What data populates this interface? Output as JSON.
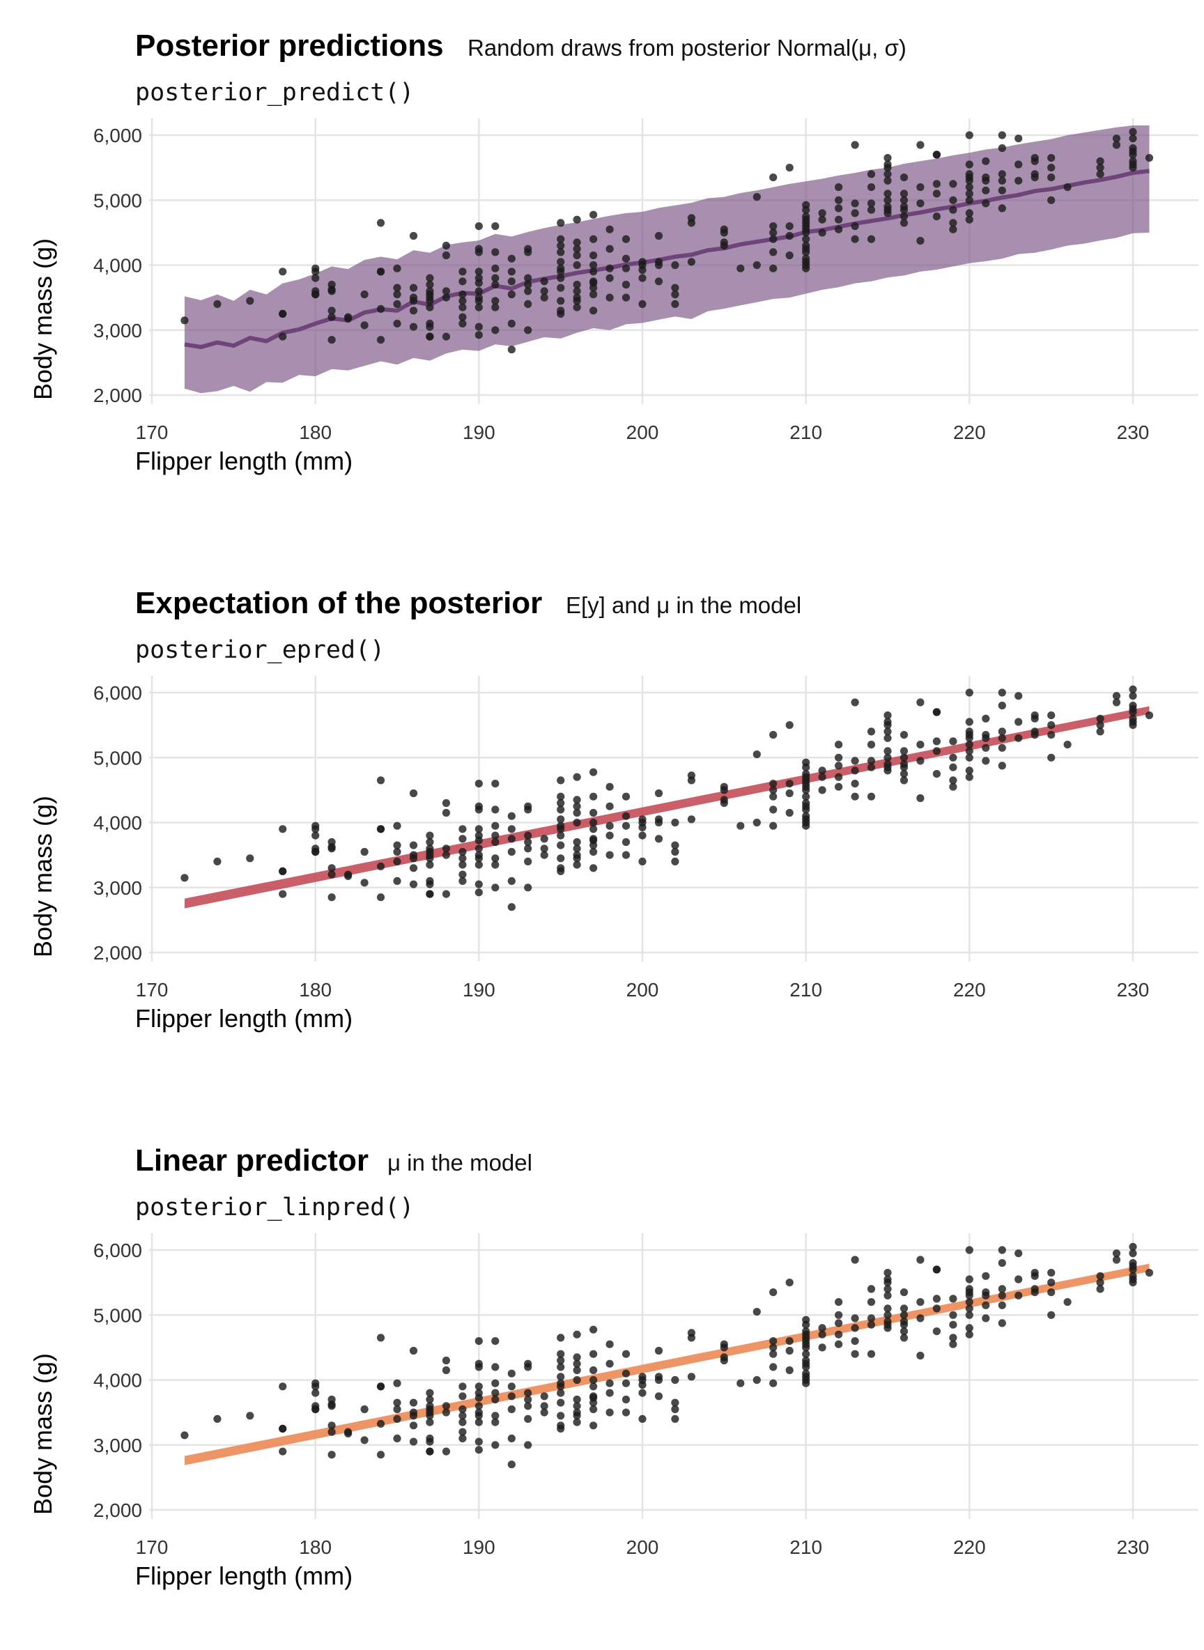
{
  "chart_data": [
    {
      "type": "scatter",
      "title": "Posterior predictions",
      "subtitle": "Random draws from posterior Normal(μ, σ)",
      "caption": "posterior_predict()",
      "xlabel": "Flipper length (mm)",
      "ylabel": "Body mass (g)",
      "xlim": [
        169,
        234
      ],
      "ylim": [
        1850,
        6150
      ],
      "xticks": [
        170,
        180,
        190,
        200,
        210,
        220,
        230
      ],
      "yticks": [
        "2,000",
        "3,000",
        "4,000",
        "5,000",
        "6,000"
      ],
      "ytick_values": [
        2000,
        3000,
        4000,
        5000,
        6000
      ],
      "grid": true,
      "band_style": "ribbon",
      "band_color": "#7a5184",
      "band_opacity": 0.65,
      "line_color": "#6e4479",
      "band": {
        "x": [
          172,
          173,
          174,
          175,
          176,
          177,
          178,
          179,
          180,
          181,
          182,
          183,
          184,
          185,
          186,
          187,
          188,
          189,
          190,
          191,
          192,
          193,
          194,
          195,
          196,
          197,
          198,
          199,
          200,
          201,
          202,
          203,
          204,
          205,
          206,
          207,
          208,
          209,
          210,
          211,
          212,
          213,
          214,
          215,
          216,
          217,
          218,
          219,
          220,
          221,
          222,
          223,
          224,
          225,
          226,
          227,
          228,
          229,
          230,
          231
        ],
        "mean": [
          2780,
          2740,
          2810,
          2760,
          2880,
          2830,
          2960,
          3010,
          3100,
          3180,
          3150,
          3270,
          3320,
          3300,
          3440,
          3390,
          3520,
          3570,
          3560,
          3680,
          3640,
          3740,
          3790,
          3830,
          3880,
          3920,
          3960,
          4010,
          4040,
          4080,
          4130,
          4160,
          4230,
          4260,
          4320,
          4360,
          4400,
          4440,
          4510,
          4540,
          4590,
          4640,
          4680,
          4720,
          4770,
          4810,
          4860,
          4900,
          4950,
          4990,
          5040,
          5080,
          5140,
          5170,
          5220,
          5270,
          5310,
          5360,
          5420,
          5450
        ],
        "lower": [
          2100,
          2030,
          2060,
          2140,
          2050,
          2200,
          2190,
          2310,
          2290,
          2400,
          2380,
          2450,
          2520,
          2470,
          2570,
          2530,
          2640,
          2700,
          2680,
          2780,
          2750,
          2820,
          2890,
          2870,
          2960,
          3030,
          3000,
          3090,
          3110,
          3160,
          3210,
          3170,
          3290,
          3330,
          3380,
          3430,
          3480,
          3500,
          3560,
          3620,
          3660,
          3720,
          3750,
          3810,
          3840,
          3900,
          3930,
          3980,
          4030,
          4060,
          4100,
          4170,
          4190,
          4240,
          4300,
          4330,
          4380,
          4420,
          4490,
          4500
        ],
        "upper": [
          3520,
          3460,
          3550,
          3450,
          3620,
          3550,
          3720,
          3780,
          3870,
          3980,
          3940,
          4080,
          4130,
          4090,
          4230,
          4190,
          4310,
          4350,
          4380,
          4480,
          4440,
          4510,
          4570,
          4620,
          4660,
          4710,
          4760,
          4800,
          4820,
          4880,
          4920,
          4960,
          5030,
          5050,
          5110,
          5150,
          5200,
          5250,
          5290,
          5330,
          5380,
          5420,
          5470,
          5500,
          5560,
          5600,
          5640,
          5690,
          5730,
          5780,
          5810,
          5860,
          5900,
          5940,
          6000,
          6040,
          6080,
          6120,
          6150,
          6150
        ]
      }
    },
    {
      "type": "scatter",
      "title": "Expectation of the posterior",
      "subtitle": "E[y] and μ in the model",
      "caption": "posterior_epred()",
      "xlabel": "Flipper length (mm)",
      "ylabel": "Body mass (g)",
      "xlim": [
        169,
        234
      ],
      "ylim": [
        1850,
        6150
      ],
      "xticks": [
        170,
        180,
        190,
        200,
        210,
        220,
        230
      ],
      "yticks": [
        "2,000",
        "3,000",
        "4,000",
        "5,000",
        "6,000"
      ],
      "ytick_values": [
        2000,
        3000,
        4000,
        5000,
        6000
      ],
      "grid": true,
      "band_style": "line",
      "band_color": "#c2434f",
      "band_opacity": 0.85,
      "band": {
        "x": [
          172,
          231
        ],
        "mean": [
          2757,
          5727
        ],
        "lower": [
          2680,
          5670
        ],
        "upper": [
          2830,
          5790
        ]
      }
    },
    {
      "type": "scatter",
      "title": "Linear predictor",
      "subtitle": "μ in the model",
      "caption": "posterior_linpred()",
      "xlabel": "Flipper length (mm)",
      "ylabel": "Body mass (g)",
      "xlim": [
        169,
        234
      ],
      "ylim": [
        1850,
        6150
      ],
      "xticks": [
        170,
        180,
        190,
        200,
        210,
        220,
        230
      ],
      "yticks": [
        "2,000",
        "3,000",
        "4,000",
        "5,000",
        "6,000"
      ],
      "ytick_values": [
        2000,
        3000,
        4000,
        5000,
        6000
      ],
      "grid": true,
      "band_style": "line",
      "band_color": "#ec8957",
      "band_opacity": 0.9,
      "band": {
        "x": [
          172,
          231
        ],
        "mean": [
          2757,
          5727
        ],
        "lower": [
          2690,
          5670
        ],
        "upper": [
          2830,
          5790
        ]
      }
    }
  ],
  "points": {
    "color": "#1a1a1a",
    "x": [
      172,
      174,
      176,
      178,
      178,
      178,
      178,
      180,
      180,
      180,
      180,
      180,
      180,
      181,
      181,
      181,
      181,
      181,
      181,
      182,
      182,
      183,
      183,
      184,
      184,
      184,
      184,
      184,
      185,
      185,
      185,
      185,
      185,
      186,
      186,
      186,
      186,
      186,
      186,
      187,
      187,
      187,
      187,
      187,
      187,
      187,
      187,
      187,
      187,
      187,
      188,
      188,
      188,
      188,
      188,
      189,
      189,
      189,
      189,
      189,
      189,
      189,
      190,
      190,
      190,
      190,
      190,
      190,
      190,
      190,
      190,
      190,
      190,
      190,
      191,
      191,
      191,
      191,
      191,
      191,
      191,
      191,
      192,
      192,
      192,
      192,
      192,
      192,
      193,
      193,
      193,
      193,
      193,
      193,
      193,
      194,
      194,
      194,
      195,
      195,
      195,
      195,
      195,
      195,
      195,
      195,
      195,
      195,
      195,
      195,
      196,
      196,
      196,
      196,
      196,
      196,
      196,
      196,
      196,
      196,
      197,
      197,
      197,
      197,
      197,
      197,
      197,
      197,
      197,
      197,
      198,
      198,
      198,
      198,
      198,
      199,
      199,
      199,
      199,
      199,
      200,
      200,
      200,
      200,
      200,
      201,
      201,
      201,
      201,
      202,
      202,
      202,
      202,
      203,
      203,
      203,
      205,
      205,
      205,
      205,
      206,
      207,
      207,
      208,
      208,
      208,
      208,
      208,
      208,
      209,
      209,
      209,
      209,
      210,
      210,
      210,
      210,
      210,
      210,
      210,
      210,
      210,
      210,
      210,
      210,
      210,
      210,
      210,
      210,
      211,
      211,
      211,
      212,
      212,
      212,
      212,
      212,
      213,
      213,
      213,
      213,
      213,
      214,
      214,
      214,
      214,
      214,
      215,
      215,
      215,
      215,
      215,
      215,
      215,
      215,
      215,
      215,
      216,
      216,
      216,
      216,
      216,
      216,
      216,
      217,
      217,
      217,
      217,
      218,
      218,
      218,
      218,
      218,
      219,
      219,
      219,
      219,
      219,
      220,
      220,
      220,
      220,
      220,
      220,
      220,
      220,
      220,
      220,
      221,
      221,
      221,
      221,
      221,
      222,
      222,
      222,
      222,
      222,
      222,
      223,
      223,
      223,
      224,
      224,
      224,
      224,
      225,
      225,
      225,
      225,
      226,
      228,
      228,
      228,
      229,
      229,
      230,
      230,
      230,
      230,
      230,
      230,
      230,
      230,
      231
    ],
    "y": [
      3150,
      3400,
      3450,
      3900,
      3250,
      3250,
      2900,
      3950,
      3900,
      3800,
      3600,
      3550,
      3550,
      3700,
      3625,
      3600,
      3300,
      3200,
      2850,
      3175,
      3200,
      3550,
      3075,
      4650,
      3900,
      3900,
      3325,
      2850,
      3950,
      3650,
      3550,
      3400,
      3100,
      4450,
      3650,
      3500,
      3450,
      3300,
      3050,
      3800,
      3700,
      3600,
      3550,
      3500,
      3450,
      3350,
      3100,
      3050,
      2900,
      2900,
      4300,
      4150,
      3600,
      3500,
      2900,
      3900,
      3750,
      3550,
      3450,
      3350,
      3200,
      3100,
      4600,
      4250,
      4200,
      3900,
      3800,
      3725,
      3600,
      3500,
      3450,
      3350,
      3050,
      2925,
      4600,
      4200,
      3950,
      3800,
      3700,
      3450,
      3350,
      3000,
      4100,
      3900,
      3750,
      3550,
      3100,
      2700,
      4250,
      4200,
      3800,
      3700,
      3600,
      3400,
      3000,
      3750,
      3600,
      3500,
      4650,
      4400,
      4300,
      4200,
      4050,
      3950,
      3900,
      3800,
      3650,
      3450,
      3300,
      3250,
      4700,
      4350,
      4250,
      4150,
      4000,
      3700,
      3600,
      3500,
      3450,
      3350,
      4775,
      4400,
      4150,
      4000,
      3900,
      3750,
      3725,
      3650,
      3550,
      3300,
      4550,
      4250,
      3950,
      3800,
      3500,
      4400,
      4100,
      3950,
      3700,
      3500,
      4050,
      4000,
      3925,
      3800,
      3400,
      4450,
      4050,
      4000,
      3750,
      4000,
      3650,
      3550,
      3400,
      4725,
      4650,
      4050,
      4550,
      4500,
      4350,
      4300,
      3950,
      5050,
      4000,
      5350,
      4600,
      4500,
      4400,
      4200,
      3950,
      5500,
      4600,
      4450,
      4150,
      4925,
      4850,
      4750,
      4700,
      4650,
      4600,
      4550,
      4500,
      4400,
      4300,
      4250,
      4200,
      4100,
      4050,
      4000,
      3950,
      4800,
      4700,
      4500,
      5200,
      5000,
      4875,
      4700,
      4550,
      5850,
      4950,
      4800,
      4600,
      4400,
      5400,
      5200,
      4950,
      4850,
      4400,
      5650,
      5550,
      5500,
      5400,
      5300,
      5100,
      5000,
      4900,
      4850,
      4800,
      5350,
      5100,
      5000,
      4900,
      4850,
      4750,
      4650,
      5850,
      5200,
      4950,
      4375,
      5700,
      5700,
      5250,
      5100,
      4750,
      5250,
      5000,
      4850,
      4650,
      4550,
      6000,
      5550,
      5400,
      5350,
      5300,
      5200,
      5100,
      5000,
      4800,
      4700,
      5600,
      5350,
      5300,
      5150,
      4950,
      6000,
      5800,
      5400,
      5300,
      5150,
      4875,
      5950,
      5550,
      5300,
      5650,
      5600,
      5400,
      5350,
      5650,
      5500,
      5000,
      5350,
      5200,
      5600,
      5500,
      5400,
      5950,
      5850,
      6050,
      5950,
      5800,
      5750,
      5700,
      5600,
      5550,
      5500,
      5650
    ]
  }
}
